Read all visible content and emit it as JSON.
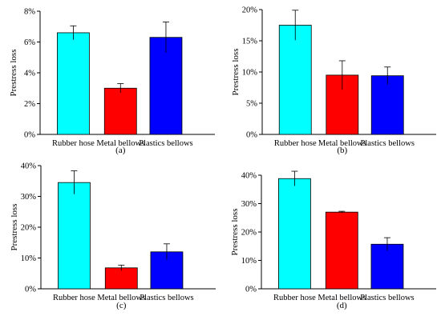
{
  "colors": {
    "axis": "#000000",
    "errorbar": "#000000"
  },
  "chart_data": [
    {
      "panel": "a",
      "type": "bar",
      "caption": "(a)",
      "ylabel": "Prestress loss",
      "categories": [
        "Rubber hose",
        "Metal bellows",
        "Plastics bellows"
      ],
      "values": [
        6.6,
        3.0,
        6.3
      ],
      "errors": [
        0.45,
        0.3,
        1.0
      ],
      "colors": [
        "#00ffff",
        "#ff0000",
        "#0000ff"
      ],
      "ylim": [
        0,
        8
      ],
      "yticks": [
        0,
        2,
        4,
        6,
        8
      ],
      "ytick_labels": [
        "0%",
        "2%",
        "4%",
        "6%",
        "8%"
      ],
      "value_unit": "%"
    },
    {
      "panel": "b",
      "type": "bar",
      "caption": "(b)",
      "ylabel": "Prestress loss",
      "categories": [
        "Rubber hose",
        "Metal bellows",
        "Plastics bellows"
      ],
      "values": [
        17.5,
        9.5,
        9.4
      ],
      "errors": [
        2.4,
        2.3,
        1.4
      ],
      "colors": [
        "#00ffff",
        "#ff0000",
        "#0000ff"
      ],
      "ylim": [
        0,
        20
      ],
      "yticks": [
        0,
        5,
        10,
        15,
        20
      ],
      "ytick_labels": [
        "0%",
        "5%",
        "10%",
        "15%",
        "20%"
      ],
      "value_unit": "%"
    },
    {
      "panel": "c",
      "type": "bar",
      "caption": "(c)",
      "ylabel": "Prestress loss",
      "categories": [
        "Rubber hose",
        "Metal bellows",
        "Plastics bellows"
      ],
      "values": [
        34.5,
        6.8,
        12.0
      ],
      "errors": [
        3.8,
        0.9,
        2.6
      ],
      "colors": [
        "#00ffff",
        "#ff0000",
        "#0000ff"
      ],
      "ylim": [
        0,
        40
      ],
      "yticks": [
        0,
        10,
        20,
        30,
        40
      ],
      "ytick_labels": [
        "0%",
        "10%",
        "20%",
        "30%",
        "40%"
      ],
      "value_unit": "%"
    },
    {
      "panel": "d",
      "type": "bar",
      "caption": "(d)",
      "ylabel": "Prestress loss",
      "categories": [
        "Rubber hose",
        "Metal bellows",
        "Plastics bellows"
      ],
      "values": [
        38.8,
        27.0,
        15.7
      ],
      "errors": [
        2.6,
        0.3,
        2.3
      ],
      "colors": [
        "#00ffff",
        "#ff0000",
        "#0000ff"
      ],
      "ylim": [
        0,
        40
      ],
      "yticks": [
        0,
        10,
        20,
        30,
        40
      ],
      "ytick_labels": [
        "0%",
        "10%",
        "20%",
        "30%",
        "40%"
      ],
      "value_unit": "%"
    }
  ]
}
